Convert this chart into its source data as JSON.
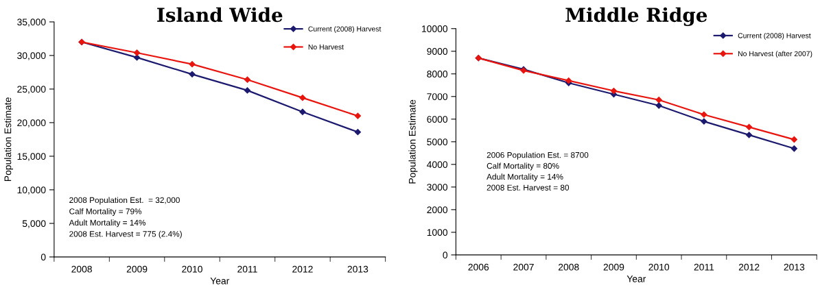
{
  "chart_data": [
    {
      "type": "line",
      "title": "Island Wide",
      "xlabel": "Year",
      "ylabel": "Population Estimate",
      "categories": [
        "2008",
        "2009",
        "2010",
        "2011",
        "2012",
        "2013"
      ],
      "series": [
        {
          "name": "Current (2008) Harvest",
          "color": "#1c1a6e",
          "values": [
            32000,
            29700,
            27200,
            24800,
            21600,
            18600
          ]
        },
        {
          "name": "No Harvest",
          "color": "#e8150f",
          "values": [
            32000,
            30400,
            28700,
            26400,
            23700,
            21000
          ]
        }
      ],
      "ylim": [
        0,
        35000
      ],
      "yticks": [
        {
          "value": 0,
          "label": "0"
        },
        {
          "value": 5000,
          "label": "5,000"
        },
        {
          "value": 10000,
          "label": "10,000"
        },
        {
          "value": 15000,
          "label": "15,000"
        },
        {
          "value": 20000,
          "label": "20,000"
        },
        {
          "value": 25000,
          "label": "25,000"
        },
        {
          "value": 30000,
          "label": "30,000"
        },
        {
          "value": 35000,
          "label": "35,000"
        }
      ],
      "annotations": [
        "2008 Population Est.  = 32,000",
        "Calf Mortality = 79%",
        "Adult Mortality = 14%",
        "2008 Est. Harvest = 775 (2.4%)"
      ],
      "legend": "top right",
      "grid": false,
      "marker": "diamond",
      "line_style": "solid"
    },
    {
      "type": "line",
      "title": "Middle Ridge",
      "xlabel": "Year",
      "ylabel": "Population Estimate",
      "categories": [
        "2006",
        "2007",
        "2008",
        "2009",
        "2010",
        "2011",
        "2012",
        "2013"
      ],
      "series": [
        {
          "name": "Current (2008) Harvest",
          "color": "#1c1a6e",
          "values": [
            8700,
            8200,
            7600,
            7100,
            6600,
            5900,
            5300,
            4700
          ]
        },
        {
          "name": "No Harvest (after 2007)",
          "color": "#e8150f",
          "values": [
            8700,
            8150,
            7700,
            7250,
            6850,
            6200,
            5650,
            5100
          ]
        }
      ],
      "ylim": [
        0,
        10000
      ],
      "yticks": [
        0,
        1000,
        2000,
        3000,
        4000,
        5000,
        6000,
        7000,
        8000,
        9000,
        10000
      ],
      "annotations": [
        "2006 Population Est. = 8700",
        "Calf Mortality = 80%",
        "Adult Mortality = 14%",
        "2008 Est. Harvest = 80"
      ],
      "legend": "top right",
      "grid": false,
      "marker": "diamond",
      "line_style": "solid"
    }
  ]
}
